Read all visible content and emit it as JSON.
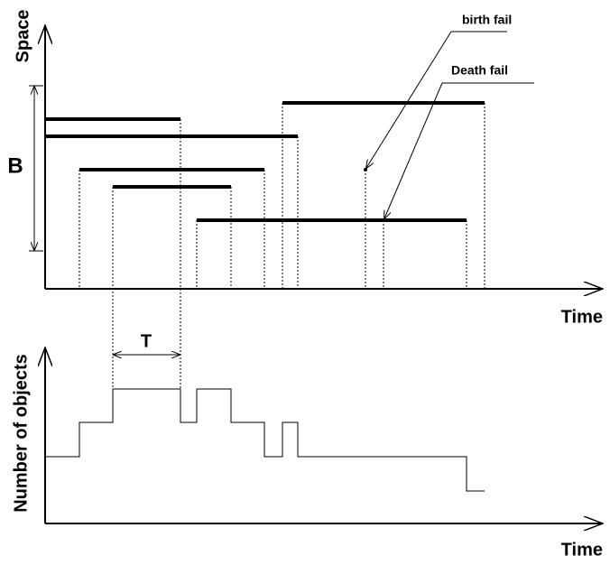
{
  "top_plot": {
    "y_axis_label": "Space",
    "x_axis_label": "Time",
    "bracket_label": "B",
    "annotations": [
      "birth fail",
      "Death fail"
    ]
  },
  "bottom_plot": {
    "y_axis_label": "Number of objects",
    "x_axis_label": "Time",
    "interval_label": "T"
  }
}
